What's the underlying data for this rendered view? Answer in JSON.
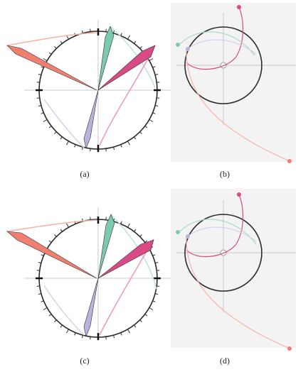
{
  "colors": {
    "salmon": "#f07f6f",
    "salmon_light": "#f7b2a7",
    "teal": "#7bcaae",
    "teal_light": "#bfe3d8",
    "magenta": "#d94a86",
    "magenta_light": "#ef95bd",
    "lavender": "#b8b3dc",
    "lavender_light": "#d6d2ec",
    "ring": "#2a2a2a",
    "axis": "#c8c8c8",
    "panel_bg": "#f3f3f3"
  },
  "captions": {
    "a": "(a)",
    "b": "(b)",
    "c": "(c)",
    "d": "(d)"
  }
}
